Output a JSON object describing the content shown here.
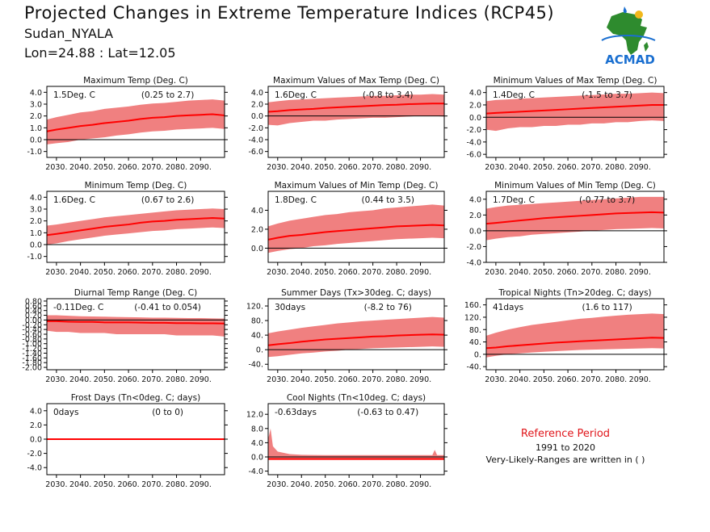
{
  "header": {
    "title": "Projected Changes in Extreme Temperature Indices (RCP45)",
    "location": "Sudan_NYALA",
    "coords": "Lon=24.88 : Lat=12.05"
  },
  "logo": {
    "text": "ACMAD",
    "icon": "africa-map-icon"
  },
  "reference": {
    "title": "Reference Period",
    "years": "1991 to 2020",
    "note": "Very-Likely-Ranges are written in ( )"
  },
  "colors": {
    "band": "#f08080",
    "line": "#ff0000",
    "zero": "#000000",
    "ref_title": "#e0161b"
  },
  "chart_data": [
    {
      "id": "maximum-temp",
      "type": "area",
      "title": "Maximum Temp (Deg. C)",
      "value_label": "1.5Deg. C",
      "range_label": "(0.25 to 2.7)",
      "x_ticks": [
        "2030.",
        "2040.",
        "2050.",
        "2060.",
        "2070.",
        "2080.",
        "2090."
      ],
      "xlim": [
        2026,
        2100
      ],
      "y_ticks": [
        "4.0",
        "3.0",
        "2.0",
        "1.0",
        "0.0",
        "-1.0"
      ],
      "ylim": [
        -1.5,
        4.5
      ],
      "x": [
        2026,
        2030,
        2035,
        2040,
        2045,
        2050,
        2055,
        2060,
        2065,
        2070,
        2075,
        2080,
        2085,
        2090,
        2095,
        2100
      ],
      "median": [
        0.7,
        0.85,
        1.0,
        1.15,
        1.25,
        1.4,
        1.5,
        1.6,
        1.75,
        1.85,
        1.9,
        2.0,
        2.05,
        2.1,
        2.15,
        2.05
      ],
      "lower": [
        -0.4,
        -0.3,
        -0.2,
        0.0,
        0.1,
        0.2,
        0.35,
        0.45,
        0.6,
        0.7,
        0.75,
        0.85,
        0.9,
        0.95,
        1.0,
        0.9
      ],
      "upper": [
        1.7,
        1.9,
        2.1,
        2.3,
        2.4,
        2.6,
        2.7,
        2.8,
        2.95,
        3.05,
        3.1,
        3.2,
        3.3,
        3.35,
        3.4,
        3.3
      ]
    },
    {
      "id": "max-values-of-max-temp",
      "type": "area",
      "title": "Maximum Values of Max Temp (Deg. C)",
      "value_label": "1.6Deg. C",
      "range_label": "(-0.8 to 3.4)",
      "x_ticks": [
        "2030.",
        "2040.",
        "2050.",
        "2060.",
        "2070.",
        "2080.",
        "2090."
      ],
      "xlim": [
        2026,
        2100
      ],
      "y_ticks": [
        "4.0",
        "2.0",
        "0.0",
        "-2.0",
        "-4.0",
        "-6.0"
      ],
      "ylim": [
        -7,
        5
      ],
      "x": [
        2026,
        2030,
        2035,
        2040,
        2045,
        2050,
        2055,
        2060,
        2065,
        2070,
        2075,
        2080,
        2085,
        2090,
        2095,
        2100
      ],
      "median": [
        0.7,
        0.8,
        1.0,
        1.1,
        1.2,
        1.35,
        1.45,
        1.55,
        1.65,
        1.75,
        1.85,
        1.9,
        2.0,
        2.05,
        2.1,
        2.1
      ],
      "lower": [
        -1.5,
        -1.6,
        -1.2,
        -1.0,
        -0.8,
        -0.8,
        -0.6,
        -0.5,
        -0.4,
        -0.3,
        -0.3,
        -0.2,
        -0.1,
        0.0,
        0.0,
        -0.1
      ],
      "upper": [
        2.3,
        2.5,
        2.7,
        2.8,
        2.9,
        3.0,
        3.1,
        3.2,
        3.3,
        3.4,
        3.4,
        3.5,
        3.6,
        3.6,
        3.7,
        3.6
      ]
    },
    {
      "id": "min-values-of-max-temp",
      "type": "area",
      "title": "Minimum Values of Max Temp (Deg. C)",
      "value_label": "1.4Deg. C",
      "range_label": "(-1.5 to 3.7)",
      "x_ticks": [
        "2030.",
        "2040.",
        "2050.",
        "2060.",
        "2070.",
        "2080.",
        "2090."
      ],
      "xlim": [
        2026,
        2100
      ],
      "y_ticks": [
        "4.0",
        "2.0",
        "0.0",
        "-2.0",
        "-4.0",
        "-6.0"
      ],
      "ylim": [
        -6.5,
        5
      ],
      "x": [
        2026,
        2030,
        2035,
        2040,
        2045,
        2050,
        2055,
        2060,
        2065,
        2070,
        2075,
        2080,
        2085,
        2090,
        2095,
        2100
      ],
      "median": [
        0.6,
        0.7,
        0.8,
        0.9,
        1.0,
        1.1,
        1.2,
        1.3,
        1.4,
        1.5,
        1.6,
        1.7,
        1.8,
        1.9,
        2.0,
        2.0
      ],
      "lower": [
        -2.0,
        -2.2,
        -1.8,
        -1.6,
        -1.6,
        -1.4,
        -1.4,
        -1.2,
        -1.2,
        -1.0,
        -1.0,
        -0.8,
        -0.8,
        -0.6,
        -0.5,
        -0.6
      ],
      "upper": [
        2.6,
        2.8,
        2.9,
        3.0,
        3.1,
        3.2,
        3.3,
        3.4,
        3.5,
        3.6,
        3.7,
        3.8,
        3.8,
        3.9,
        4.0,
        3.9
      ]
    },
    {
      "id": "minimum-temp",
      "type": "area",
      "title": "Minimum Temp (Deg. C)",
      "value_label": "1.6Deg. C",
      "range_label": "(0.67 to 2.6)",
      "x_ticks": [
        "2030.",
        "2040.",
        "2050.",
        "2060.",
        "2070.",
        "2080.",
        "2090."
      ],
      "xlim": [
        2026,
        2100
      ],
      "y_ticks": [
        "4.0",
        "3.0",
        "2.0",
        "1.0",
        "0.0",
        "-1.0"
      ],
      "ylim": [
        -1.5,
        4.5
      ],
      "x": [
        2026,
        2030,
        2035,
        2040,
        2045,
        2050,
        2055,
        2060,
        2065,
        2070,
        2075,
        2080,
        2085,
        2090,
        2095,
        2100
      ],
      "median": [
        0.8,
        0.9,
        1.05,
        1.2,
        1.35,
        1.5,
        1.6,
        1.7,
        1.85,
        1.95,
        2.0,
        2.1,
        2.15,
        2.2,
        2.25,
        2.2
      ],
      "lower": [
        0.0,
        0.1,
        0.3,
        0.45,
        0.6,
        0.75,
        0.85,
        0.95,
        1.05,
        1.15,
        1.2,
        1.3,
        1.35,
        1.4,
        1.45,
        1.4
      ],
      "upper": [
        1.6,
        1.7,
        1.85,
        2.0,
        2.15,
        2.3,
        2.4,
        2.5,
        2.6,
        2.7,
        2.8,
        2.9,
        2.95,
        3.0,
        3.05,
        3.0
      ]
    },
    {
      "id": "max-values-of-min-temp",
      "type": "area",
      "title": "Maximum Values of Min Temp (Deg. C)",
      "value_label": "1.8Deg. C",
      "range_label": "(0.44 to 3.5)",
      "x_ticks": [
        "2030.",
        "2040.",
        "2050.",
        "2060.",
        "2070.",
        "2080.",
        "2090."
      ],
      "xlim": [
        2026,
        2100
      ],
      "y_ticks": [
        "4.0",
        "2.0",
        "0.0"
      ],
      "ylim": [
        -1.5,
        6
      ],
      "x": [
        2026,
        2030,
        2035,
        2040,
        2045,
        2050,
        2055,
        2060,
        2065,
        2070,
        2075,
        2080,
        2085,
        2090,
        2095,
        2100
      ],
      "median": [
        0.9,
        1.1,
        1.3,
        1.4,
        1.55,
        1.7,
        1.8,
        1.9,
        2.0,
        2.1,
        2.2,
        2.3,
        2.35,
        2.4,
        2.45,
        2.4
      ],
      "lower": [
        -0.5,
        -0.3,
        -0.1,
        0.0,
        0.2,
        0.3,
        0.45,
        0.55,
        0.65,
        0.75,
        0.85,
        0.95,
        1.0,
        1.05,
        1.1,
        1.05
      ],
      "upper": [
        2.3,
        2.6,
        2.9,
        3.1,
        3.3,
        3.5,
        3.6,
        3.8,
        3.9,
        4.0,
        4.2,
        4.3,
        4.4,
        4.5,
        4.6,
        4.5
      ]
    },
    {
      "id": "min-values-of-min-temp",
      "type": "area",
      "title": "Minimum Values of Min Temp (Deg. C)",
      "value_label": "1.7Deg. C",
      "range_label": "(-0.77 to 3.7)",
      "x_ticks": [
        "2030.",
        "2040.",
        "2050.",
        "2060.",
        "2070.",
        "2080.",
        "2090."
      ],
      "xlim": [
        2026,
        2100
      ],
      "y_ticks": [
        "4.0",
        "2.0",
        "0.0",
        "-2.0",
        "-4.0"
      ],
      "ylim": [
        -4,
        5
      ],
      "x": [
        2026,
        2030,
        2035,
        2040,
        2045,
        2050,
        2055,
        2060,
        2065,
        2070,
        2075,
        2080,
        2085,
        2090,
        2095,
        2100
      ],
      "median": [
        0.9,
        1.0,
        1.15,
        1.3,
        1.45,
        1.6,
        1.7,
        1.8,
        1.9,
        2.0,
        2.1,
        2.2,
        2.25,
        2.3,
        2.35,
        2.3
      ],
      "lower": [
        -1.2,
        -1.0,
        -0.8,
        -0.7,
        -0.5,
        -0.4,
        -0.3,
        -0.2,
        -0.1,
        0.0,
        0.1,
        0.2,
        0.25,
        0.3,
        0.35,
        0.3
      ],
      "upper": [
        2.8,
        3.0,
        3.2,
        3.3,
        3.4,
        3.5,
        3.6,
        3.7,
        3.8,
        3.9,
        4.0,
        4.1,
        4.2,
        4.3,
        4.3,
        4.3
      ]
    },
    {
      "id": "diurnal-temp-range",
      "type": "area",
      "title": "Diurnal Temp Range (Deg. C)",
      "value_label": "-0.11Deg. C",
      "range_label": "(-0.41 to 0.054)",
      "x_ticks": [
        "2030.",
        "2040.",
        "2050.",
        "2060.",
        "2070.",
        "2080.",
        "2090."
      ],
      "xlim": [
        2026,
        2100
      ],
      "y_ticks": [
        "0.80",
        "0.60",
        "0.40",
        "0.20",
        "0.00",
        "-0.20",
        "-0.40",
        "-0.60",
        "-0.80",
        "-1.00",
        "-1.20",
        "-1.40",
        "-1.60",
        "-1.80",
        "-2.00"
      ],
      "ylim": [
        -2.1,
        0.9
      ],
      "x": [
        2026,
        2030,
        2035,
        2040,
        2045,
        2050,
        2055,
        2060,
        2065,
        2070,
        2075,
        2080,
        2085,
        2090,
        2095,
        2100
      ],
      "median": [
        -0.05,
        -0.05,
        -0.07,
        -0.08,
        -0.08,
        -0.1,
        -0.1,
        -0.1,
        -0.11,
        -0.12,
        -0.12,
        -0.13,
        -0.13,
        -0.14,
        -0.14,
        -0.15
      ],
      "lower": [
        -0.45,
        -0.5,
        -0.5,
        -0.55,
        -0.55,
        -0.55,
        -0.6,
        -0.6,
        -0.6,
        -0.6,
        -0.6,
        -0.65,
        -0.65,
        -0.65,
        -0.65,
        -0.7
      ],
      "upper": [
        0.2,
        0.2,
        0.18,
        0.16,
        0.15,
        0.14,
        0.13,
        0.12,
        0.11,
        0.1,
        0.1,
        0.09,
        0.08,
        0.08,
        0.07,
        0.06
      ]
    },
    {
      "id": "summer-days",
      "type": "area",
      "title": "Summer Days (Tx>30deg. C; days)",
      "value_label": "30days",
      "range_label": "(-8.2 to 76)",
      "x_ticks": [
        "2030.",
        "2040.",
        "2050.",
        "2060.",
        "2070.",
        "2080.",
        "2090."
      ],
      "xlim": [
        2026,
        2100
      ],
      "y_ticks": [
        "120.",
        "80.",
        "40.",
        "0.",
        "-40."
      ],
      "ylim": [
        -55,
        140
      ],
      "x": [
        2026,
        2030,
        2035,
        2040,
        2045,
        2050,
        2055,
        2060,
        2065,
        2070,
        2075,
        2080,
        2085,
        2090,
        2095,
        2100
      ],
      "median": [
        12,
        15,
        18,
        22,
        25,
        28,
        30,
        32,
        34,
        36,
        37,
        39,
        40,
        41,
        42,
        41
      ],
      "lower": [
        -20,
        -18,
        -14,
        -10,
        -8,
        -5,
        -3,
        0,
        2,
        4,
        5,
        6,
        7,
        8,
        9,
        8
      ],
      "upper": [
        45,
        50,
        55,
        60,
        64,
        68,
        72,
        75,
        78,
        80,
        82,
        84,
        86,
        88,
        90,
        88
      ]
    },
    {
      "id": "tropical-nights",
      "type": "area",
      "title": "Tropical Nights (Tn>20deg. C; days)",
      "value_label": "41days",
      "range_label": "(1.6 to 117)",
      "x_ticks": [
        "2030.",
        "2040.",
        "2050.",
        "2060.",
        "2070.",
        "2080.",
        "2090."
      ],
      "xlim": [
        2026,
        2100
      ],
      "y_ticks": [
        "160.",
        "120.",
        "80.",
        "40.",
        "0.",
        "-40."
      ],
      "ylim": [
        -50,
        180
      ],
      "x": [
        2026,
        2030,
        2035,
        2040,
        2045,
        2050,
        2055,
        2060,
        2065,
        2070,
        2075,
        2080,
        2085,
        2090,
        2095,
        2100
      ],
      "median": [
        20,
        22,
        26,
        29,
        32,
        35,
        38,
        40,
        42,
        44,
        46,
        48,
        50,
        52,
        54,
        53
      ],
      "lower": [
        -10,
        -5,
        0,
        3,
        6,
        8,
        10,
        12,
        14,
        15,
        16,
        17,
        18,
        19,
        20,
        19
      ],
      "upper": [
        60,
        70,
        80,
        88,
        95,
        100,
        105,
        110,
        115,
        118,
        122,
        125,
        128,
        130,
        132,
        130
      ]
    },
    {
      "id": "frost-days",
      "type": "area",
      "title": "Frost Days (Tn<0deg. C; days)",
      "value_label": "0days",
      "range_label": "(0 to 0)",
      "x_ticks": [
        "2030.",
        "2040.",
        "2050.",
        "2060.",
        "2070.",
        "2080.",
        "2090."
      ],
      "xlim": [
        2026,
        2100
      ],
      "y_ticks": [
        "4.0",
        "2.0",
        "0.0",
        "-2.0",
        "-4.0"
      ],
      "ylim": [
        -5,
        5
      ],
      "x": [
        2026,
        2100
      ],
      "median": [
        0,
        0
      ],
      "lower": [
        0,
        0
      ],
      "upper": [
        0,
        0
      ]
    },
    {
      "id": "cool-nights",
      "type": "area",
      "title": "Cool Nights (Tn<10deg. C; days)",
      "value_label": "-0.63days",
      "range_label": "(-0.63 to 0.47)",
      "x_ticks": [
        "2030.",
        "2040.",
        "2050.",
        "2060.",
        "2070.",
        "2080.",
        "2090."
      ],
      "xlim": [
        2026,
        2100
      ],
      "y_ticks": [
        "12.0",
        "8.0",
        "4.0",
        "0.0",
        "-4.0"
      ],
      "ylim": [
        -5,
        15
      ],
      "x": [
        2026,
        2027,
        2028,
        2030,
        2035,
        2040,
        2050,
        2060,
        2070,
        2080,
        2090,
        2095,
        2096,
        2097,
        2100
      ],
      "median": [
        -0.6,
        -0.6,
        -0.6,
        -0.6,
        -0.6,
        -0.6,
        -0.6,
        -0.6,
        -0.6,
        -0.6,
        -0.6,
        -0.6,
        -0.6,
        -0.6,
        -0.6
      ],
      "lower": [
        -0.7,
        -0.7,
        -0.7,
        -0.7,
        -0.7,
        -0.7,
        -0.7,
        -0.7,
        -0.7,
        -0.7,
        -0.7,
        -0.7,
        -0.7,
        -0.7,
        -0.7
      ],
      "upper": [
        5,
        8,
        3,
        1.5,
        0.8,
        0.6,
        0.5,
        0.5,
        0.5,
        0.5,
        0.5,
        0.5,
        2,
        0.5,
        0.5
      ]
    }
  ]
}
